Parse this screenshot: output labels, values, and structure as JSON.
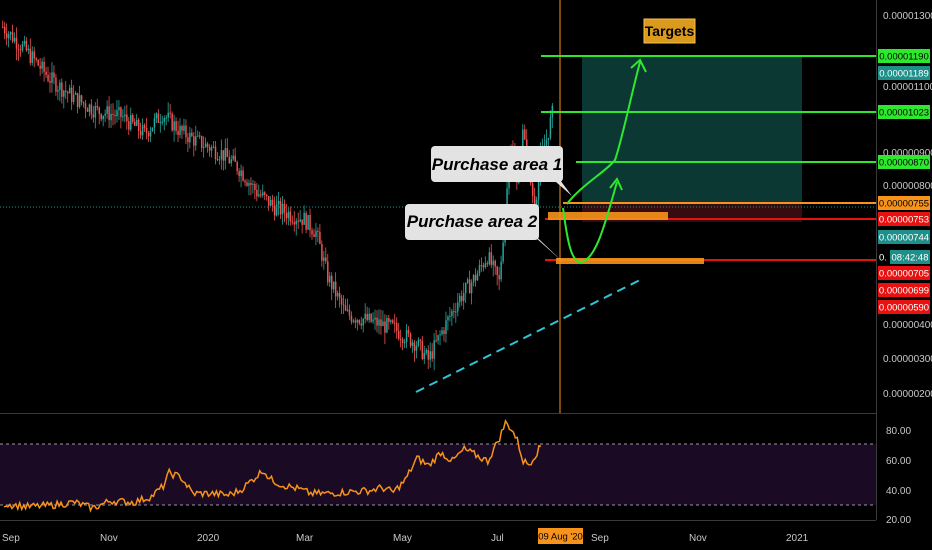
{
  "chart_data": [
    {
      "type": "candlestick",
      "title": "",
      "price_axis_ticks": [
        "0.00001300",
        "0.00001100",
        "0.00000900",
        "0.00000800",
        "0.00000400",
        "0.00000300",
        "0.00000200"
      ],
      "time_axis_ticks": [
        "Sep",
        "Nov",
        "2020",
        "Mar",
        "May",
        "Jul",
        "Sep",
        "Nov",
        "2021"
      ],
      "cursor_date": "09 Aug '20",
      "cursor_price_value": "0.",
      "countdown": "08:42:48",
      "price_tags": [
        {
          "label": "0.00001190",
          "value": 1.19e-05,
          "color": "#2ee82e"
        },
        {
          "label": "0.00001189",
          "value": 1.189e-05,
          "color": "#1f8f8a"
        },
        {
          "label": "0.00001023",
          "value": 1.023e-05,
          "color": "#2ee82e"
        },
        {
          "label": "0.00000870",
          "value": 8.7e-06,
          "color": "#2ee82e"
        },
        {
          "label": "0.00000755",
          "value": 7.55e-06,
          "color": "#f7931a"
        },
        {
          "label": "0.00000753",
          "value": 7.53e-06,
          "color": "#e8110f"
        },
        {
          "label": "0.00000744",
          "value": 7.44e-06,
          "color": "#1f8f8a"
        },
        {
          "label": "0.00000705",
          "value": 7.05e-06,
          "color": "#e8110f"
        },
        {
          "label": "0.00000699",
          "value": 6.99e-06,
          "color": "#e8110f"
        },
        {
          "label": "0.00000590",
          "value": 5.9e-06,
          "color": "#e8110f"
        }
      ],
      "annotations": {
        "purchase_area_1": "Purchase area 1",
        "purchase_area_2": "Purchase area 2",
        "targets": "Targets"
      },
      "series": [
        {
          "name": "",
          "type": "candles",
          "close_path": [
            [
              0,
              1.26e-05
            ],
            [
              4,
              1.11e-05
            ],
            [
              8,
              9.6e-06
            ],
            [
              12,
              8.7e-06
            ],
            [
              16,
              8.1e-06
            ],
            [
              20,
              7.9e-06
            ],
            [
              24,
              7.2e-06
            ],
            [
              27,
              8e-06
            ],
            [
              30,
              7.3e-06
            ],
            [
              33,
              6.9e-06
            ],
            [
              37,
              6.5e-06
            ],
            [
              40,
              6e-06
            ],
            [
              43,
              5.3e-06
            ],
            [
              46,
              4.9e-06
            ],
            [
              49,
              4.7e-06
            ],
            [
              51,
              4.6e-06
            ],
            [
              53,
              4.3e-06
            ],
            [
              55,
              3.4e-06
            ],
            [
              58,
              2.8e-06
            ],
            [
              62,
              2.7e-06
            ],
            [
              66,
              2.6e-06
            ],
            [
              70,
              2.4e-06
            ],
            [
              72,
              2.2e-06
            ],
            [
              74,
              2.5e-06
            ],
            [
              77,
              3e-06
            ],
            [
              80,
              3.4e-06
            ],
            [
              82,
              3.8e-06
            ],
            [
              84,
              3.3e-06
            ],
            [
              86,
              6.9e-06
            ],
            [
              87,
              5.5e-06
            ],
            [
              88,
              7.2e-06
            ],
            [
              90,
              4.9e-06
            ],
            [
              91,
              6.3e-06
            ],
            [
              92,
              7e-06
            ],
            [
              93,
              8e-06
            ]
          ]
        }
      ],
      "y_scale": "log",
      "ylim": [
        1.7e-06,
        1.42e-05
      ],
      "grid": false
    },
    {
      "type": "line",
      "title": "",
      "y_ticks": [
        "80.00",
        "60.00",
        "40.00",
        "20.00"
      ],
      "ylim": [
        18,
        90
      ],
      "bands": [
        30,
        70
      ],
      "series": [
        {
          "name": "",
          "color": "#f7931a",
          "values": [
            [
              0,
              29
            ],
            [
              4,
              27
            ],
            [
              8,
              28
            ],
            [
              12,
              30
            ],
            [
              15,
              26
            ],
            [
              18,
              31
            ],
            [
              22,
              30
            ],
            [
              25,
              34
            ],
            [
              27,
              41
            ],
            [
              28,
              50
            ],
            [
              30,
              47
            ],
            [
              32,
              36
            ],
            [
              35,
              36
            ],
            [
              38,
              35
            ],
            [
              40,
              38
            ],
            [
              42,
              45
            ],
            [
              44,
              52
            ],
            [
              45,
              46
            ],
            [
              47,
              42
            ],
            [
              50,
              39
            ],
            [
              52,
              36
            ],
            [
              55,
              36
            ],
            [
              58,
              37
            ],
            [
              62,
              38
            ],
            [
              64,
              40
            ],
            [
              66,
              37
            ],
            [
              68,
              45
            ],
            [
              70,
              60
            ],
            [
              72,
              55
            ],
            [
              74,
              64
            ],
            [
              76,
              58
            ],
            [
              78,
              66
            ],
            [
              80,
              62
            ],
            [
              82,
              58
            ],
            [
              84,
              74
            ],
            [
              85,
              84
            ],
            [
              86,
              80
            ],
            [
              87,
              72
            ],
            [
              88,
              58
            ],
            [
              89,
              56
            ],
            [
              90,
              62
            ],
            [
              91,
              68
            ]
          ]
        }
      ]
    }
  ],
  "colors": {
    "background": "#000000",
    "rsi_band": "#1a0a24",
    "bullish": "#26a69a",
    "bearish": "#ef5350",
    "target_green": "#2ee82e",
    "trendline": "#2ec4d6",
    "target_box": "#0d3b36",
    "cursor_line": "#f7931a",
    "zone_orange": "#f7931a",
    "support_red": "#e8110f"
  }
}
